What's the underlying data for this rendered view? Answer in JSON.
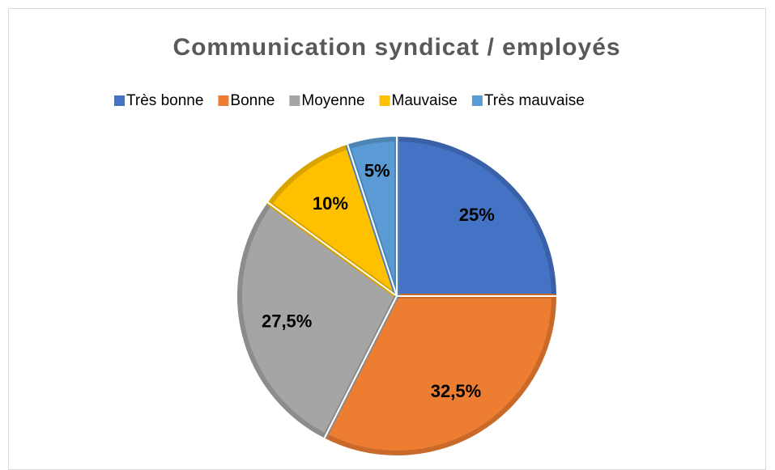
{
  "chart_data": {
    "type": "pie",
    "title": "Communication syndicat / employés",
    "categories": [
      "Très bonne",
      "Bonne",
      "Moyenne",
      "Mauvaise",
      "Très mauvaise"
    ],
    "values": [
      25,
      32.5,
      27.5,
      10,
      5
    ],
    "value_labels": [
      "25%",
      "32,5%",
      "27,5%",
      "10%",
      "5%"
    ],
    "colors": [
      "#4472c4",
      "#ed7d31",
      "#a5a5a5",
      "#ffc000",
      "#5b9bd5"
    ],
    "legend": "top"
  }
}
